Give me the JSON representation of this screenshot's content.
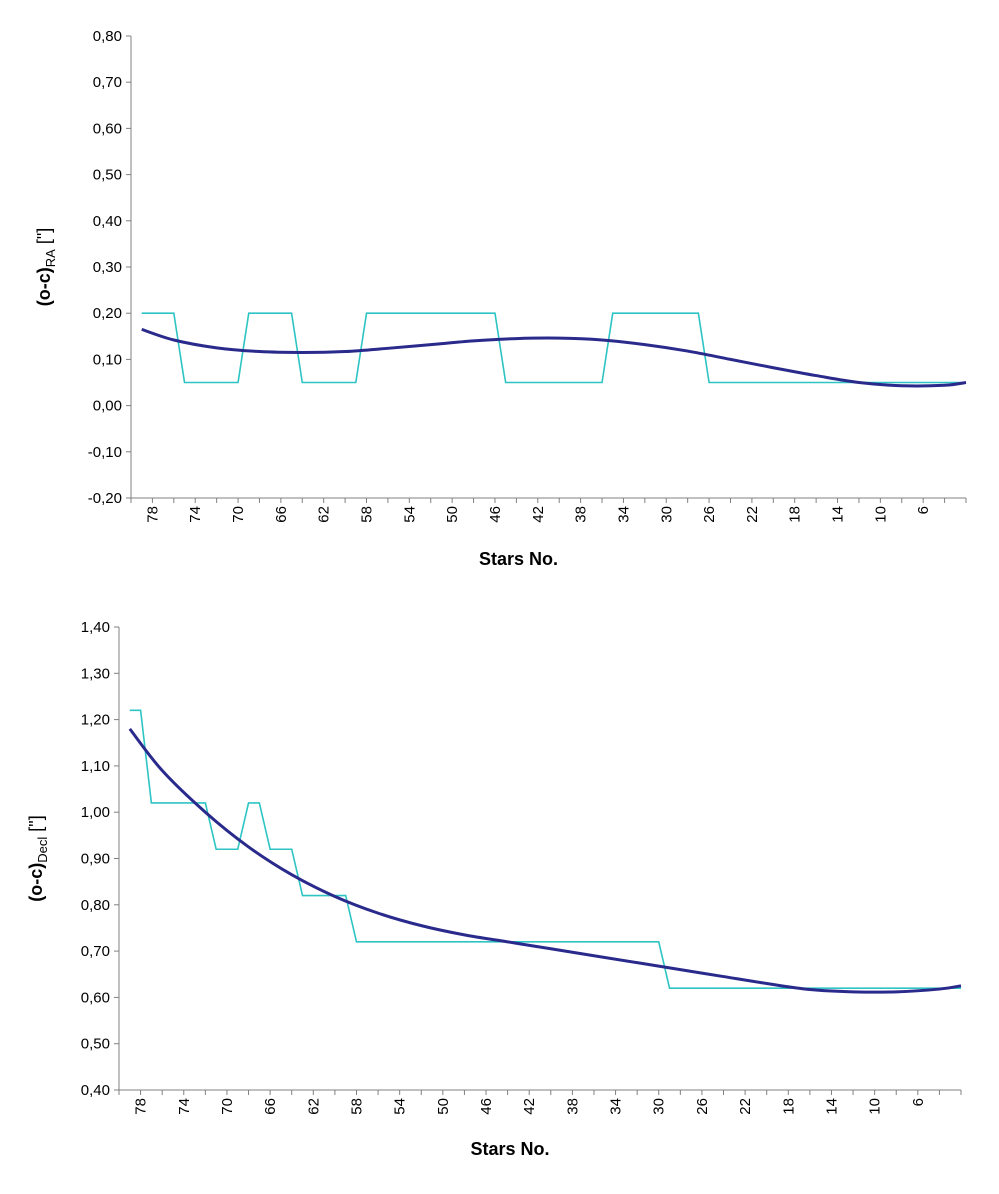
{
  "colors": {
    "series_stepped": "#2ec4c4",
    "series_trend": "#2a2a8c",
    "axis": "#808080"
  },
  "chart_data": [
    {
      "type": "line",
      "ylabel_main": "(o-c)",
      "ylabel_sub": "RA",
      "ylabel_unit": " [\"]",
      "xlabel": "Stars No.",
      "xlim": [
        80,
        2
      ],
      "ylim": [
        -0.2,
        0.8
      ],
      "yticks": [
        "-0,20",
        "-0,10",
        "0,00",
        "0,10",
        "0,20",
        "0,30",
        "0,40",
        "0,50",
        "0,60",
        "0,70",
        "0,80"
      ],
      "ytick_values": [
        -0.2,
        -0.1,
        0,
        0.1,
        0.2,
        0.3,
        0.4,
        0.5,
        0.6,
        0.7,
        0.8
      ],
      "xticks": [
        "78",
        "74",
        "70",
        "66",
        "62",
        "58",
        "54",
        "50",
        "46",
        "42",
        "38",
        "34",
        "30",
        "26",
        "22",
        "18",
        "14",
        "10",
        "6"
      ],
      "xtick_values": [
        78,
        74,
        70,
        66,
        62,
        58,
        54,
        50,
        46,
        42,
        38,
        34,
        30,
        26,
        22,
        18,
        14,
        10,
        6
      ],
      "series": [
        {
          "kind": "stepped",
          "x": [
            79,
            76,
            75,
            70,
            69,
            65,
            64,
            59,
            58,
            46,
            45,
            36,
            35,
            27,
            26,
            2
          ],
          "y": [
            0.2,
            0.2,
            0.05,
            0.05,
            0.2,
            0.2,
            0.05,
            0.05,
            0.2,
            0.2,
            0.05,
            0.05,
            0.2,
            0.2,
            0.05,
            0.05
          ]
        },
        {
          "kind": "trend",
          "x": [
            79,
            76,
            72,
            68,
            64,
            60,
            56,
            52,
            48,
            44,
            40,
            36,
            32,
            28,
            24,
            20,
            16,
            12,
            8,
            4,
            2
          ],
          "y": [
            0.165,
            0.142,
            0.125,
            0.117,
            0.115,
            0.117,
            0.124,
            0.132,
            0.14,
            0.145,
            0.146,
            0.142,
            0.132,
            0.118,
            0.1,
            0.082,
            0.065,
            0.05,
            0.043,
            0.044,
            0.05
          ]
        }
      ]
    },
    {
      "type": "line",
      "ylabel_main": "(o-c)",
      "ylabel_sub": "Decl",
      "ylabel_unit": " [\"]",
      "xlabel": "Stars No.",
      "xlim": [
        80,
        2
      ],
      "ylim": [
        0.4,
        1.4
      ],
      "yticks": [
        "0,40",
        "0,50",
        "0,60",
        "0,70",
        "0,80",
        "0,90",
        "1,00",
        "1,10",
        "1,20",
        "1,30",
        "1,40"
      ],
      "ytick_values": [
        0.4,
        0.5,
        0.6,
        0.7,
        0.8,
        0.9,
        1.0,
        1.1,
        1.2,
        1.3,
        1.4
      ],
      "xticks": [
        "78",
        "74",
        "70",
        "66",
        "62",
        "58",
        "54",
        "50",
        "46",
        "42",
        "38",
        "34",
        "30",
        "26",
        "22",
        "18",
        "14",
        "10",
        "6"
      ],
      "xtick_values": [
        78,
        74,
        70,
        66,
        62,
        58,
        54,
        50,
        46,
        42,
        38,
        34,
        30,
        26,
        22,
        18,
        14,
        10,
        6
      ],
      "series": [
        {
          "kind": "stepped",
          "x": [
            79,
            78,
            77,
            72,
            71,
            69,
            68,
            67,
            66,
            64,
            63,
            59,
            58,
            30,
            29,
            2
          ],
          "y": [
            1.22,
            1.22,
            1.02,
            1.02,
            0.92,
            0.92,
            1.02,
            1.02,
            0.92,
            0.92,
            0.82,
            0.82,
            0.72,
            0.72,
            0.62,
            0.62
          ]
        },
        {
          "kind": "trend",
          "x": [
            79,
            76,
            72,
            68,
            64,
            60,
            56,
            52,
            48,
            44,
            40,
            36,
            32,
            28,
            24,
            20,
            16,
            12,
            8,
            4,
            2
          ],
          "y": [
            1.18,
            1.09,
            1.0,
            0.925,
            0.865,
            0.818,
            0.782,
            0.755,
            0.735,
            0.72,
            0.705,
            0.69,
            0.675,
            0.66,
            0.645,
            0.63,
            0.617,
            0.612,
            0.612,
            0.618,
            0.625
          ]
        }
      ]
    }
  ]
}
